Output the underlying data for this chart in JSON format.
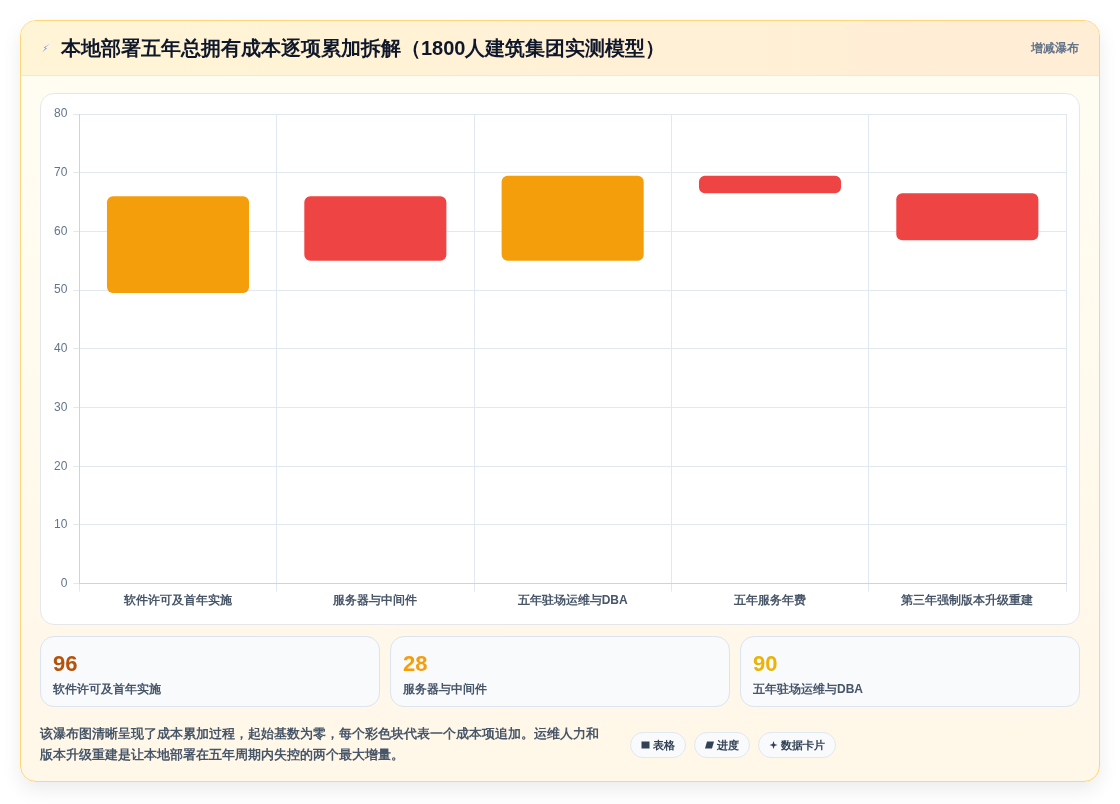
{
  "chart_data": [
    {
      "type": "bar",
      "title": "本地部署五年总拥有成本逐项累加拆解（1800人建筑集团实测模型）",
      "categories": [
        "软件许可及首年实施",
        "服务器与中间件",
        "五年驻场运维与DBA",
        "五年服务年费",
        "第三年强制版本升级重建"
      ],
      "values": [
        16.5,
        11,
        14.5,
        3,
        8
      ],
      "base": [
        49.5,
        55,
        55,
        66.5,
        58.5
      ],
      "colors": [
        "#f59e0b",
        "#ef4444",
        "#f59e0b",
        "#ef4444",
        "#ef4444"
      ],
      "ylim": [
        0,
        80
      ],
      "yticks": [
        0,
        10,
        20,
        30,
        40,
        50,
        60,
        70,
        80
      ],
      "grid": true,
      "legend": false,
      "annotations": [
        "增减瀑布"
      ]
    },
    {
      "type": "other",
      "categories": [
        "软件许可及首年实施",
        "服务器与中间件",
        "五年驻场运维与DBA"
      ],
      "values": [
        96,
        28,
        90
      ],
      "data_labels": true,
      "annotations": [
        "该瀑布图清晰呈现了成本累加过程，起始基数为零，每个彩色块代表一个成本项追加。运维人力和版本升级重建是让本地部署在五年周期内失控的两个最大增量。",
        "表格",
        "进度",
        "数据卡片"
      ]
    }
  ]
}
